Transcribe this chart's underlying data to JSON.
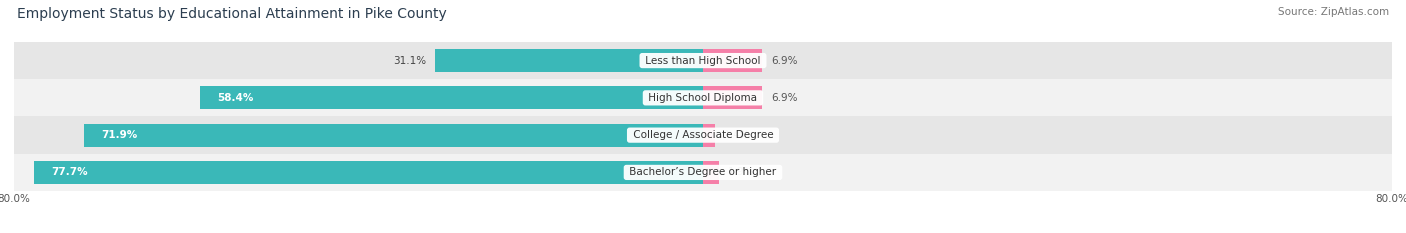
{
  "title": "Employment Status by Educational Attainment in Pike County",
  "source": "Source: ZipAtlas.com",
  "categories": [
    "Less than High School",
    "High School Diploma",
    "College / Associate Degree",
    "Bachelor’s Degree or higher"
  ],
  "in_labor_force": [
    31.1,
    58.4,
    71.9,
    77.7
  ],
  "unemployed": [
    6.9,
    6.9,
    1.4,
    1.9
  ],
  "labor_force_color": "#3ab8b8",
  "unemployed_color": "#f57fa8",
  "row_bg_light": "#f2f2f2",
  "row_bg_dark": "#e6e6e6",
  "title_fontsize": 10,
  "source_fontsize": 7.5,
  "label_fontsize": 7.5,
  "cat_fontsize": 7.5,
  "bar_height": 0.62,
  "background_color": "#ffffff",
  "xlim_left": -80.0,
  "xlim_right": 80.0
}
